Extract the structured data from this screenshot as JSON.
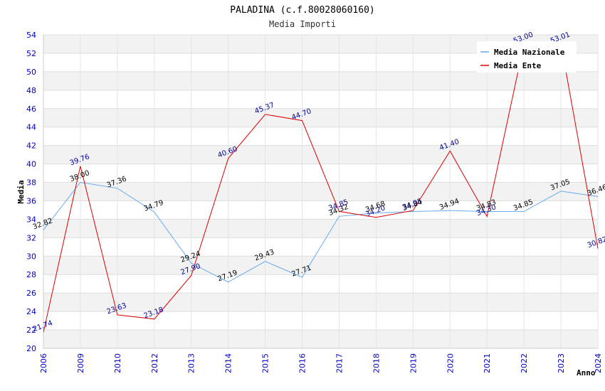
{
  "chart_data": {
    "type": "line",
    "title": "PALADINA (c.f.80028060160)",
    "subtitle": "Media Importi",
    "xlabel": "Anno",
    "ylabel": "Media",
    "ylim": [
      20,
      54
    ],
    "ytick_step": 2,
    "categories": [
      "2006",
      "2009",
      "2010",
      "2012",
      "2013",
      "2014",
      "2015",
      "2016",
      "2017",
      "2018",
      "2019",
      "2020",
      "2021",
      "2022",
      "2023",
      "2024"
    ],
    "series": [
      {
        "name": "Media Nazionale",
        "color": "#66aaee",
        "label_color": "#000000",
        "values": [
          32.82,
          38.0,
          37.36,
          34.79,
          29.24,
          27.19,
          29.43,
          27.71,
          34.32,
          34.68,
          34.84,
          34.94,
          34.83,
          34.85,
          37.05,
          36.46
        ]
      },
      {
        "name": "Media Ente",
        "color": "#dd0000",
        "label_color": "#000099",
        "values": [
          21.74,
          39.76,
          23.63,
          23.18,
          27.9,
          40.6,
          45.37,
          44.7,
          34.85,
          34.2,
          34.95,
          41.4,
          34.3,
          53.0,
          53.01,
          30.82
        ]
      }
    ],
    "grid": true,
    "legend": "top-right"
  }
}
